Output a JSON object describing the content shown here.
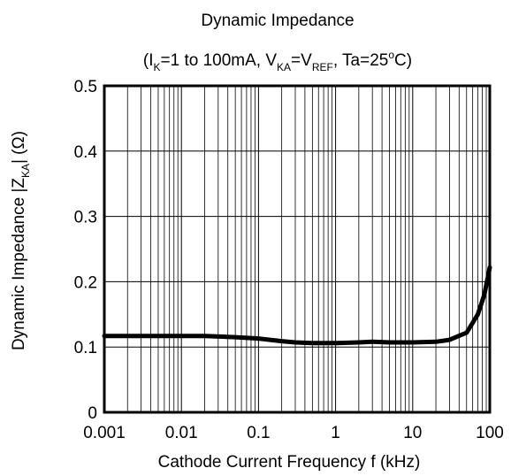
{
  "chart_data": {
    "type": "line",
    "title": "Dynamic Impedance",
    "subtitle": {
      "open": "(I",
      "ik_sub": "K",
      "part1": "=1 to 100mA, V",
      "vka_sub": "KA",
      "part2": "=V",
      "vref_sub": "REF",
      "part3": ", Ta=25",
      "deg": "o",
      "part4": "C)"
    },
    "xlabel": "Cathode Current Frequency  f  (kHz)",
    "ylabel": {
      "main": "Dynamic Impedance  |Z",
      "sub": "KA",
      "end": "| (Ω)"
    },
    "xscale": "log",
    "xlim": [
      0.001,
      100
    ],
    "ylim": [
      0,
      0.5
    ],
    "xticks": [
      "0.001",
      "0.01",
      "0.1",
      "1",
      "10",
      "100"
    ],
    "yticks": [
      "0",
      "0.1",
      "0.2",
      "0.3",
      "0.4",
      "0.5"
    ],
    "grid": true,
    "series": [
      {
        "x": [
          0.001,
          0.003,
          0.01,
          0.02,
          0.05,
          0.1,
          0.2,
          0.3,
          0.5,
          1,
          2,
          3,
          5,
          10,
          20,
          30,
          50,
          70,
          85,
          100
        ],
        "y": [
          0.117,
          0.117,
          0.117,
          0.117,
          0.115,
          0.113,
          0.109,
          0.107,
          0.106,
          0.106,
          0.107,
          0.108,
          0.107,
          0.107,
          0.108,
          0.111,
          0.122,
          0.15,
          0.18,
          0.222
        ]
      }
    ]
  }
}
